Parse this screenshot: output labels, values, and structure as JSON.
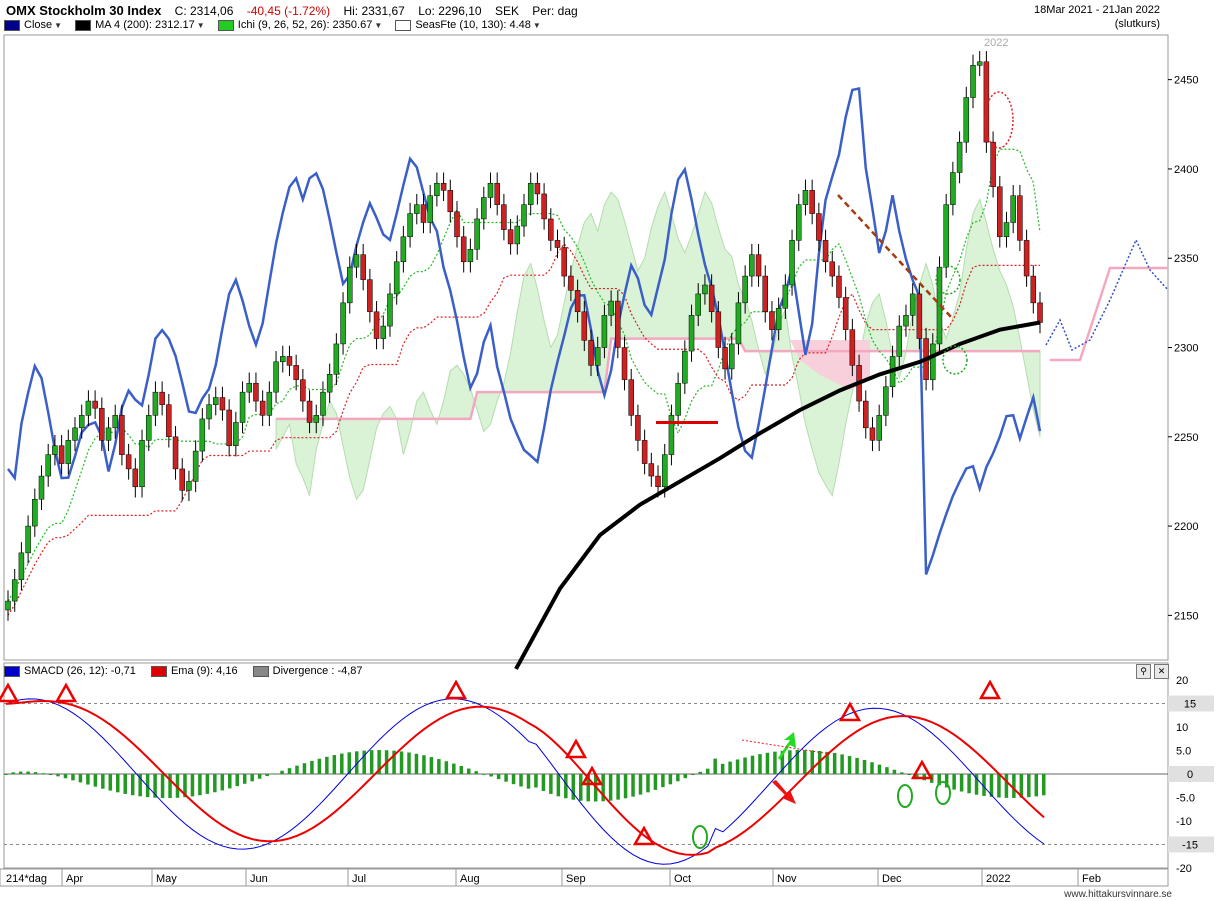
{
  "header": {
    "title": "OMX Stockholm 30 Index",
    "close": "C: 2314,06",
    "change": "-40,45 (-1.72%)",
    "high": "Hi: 2331,67",
    "low": "Lo: 2296,10",
    "currency": "SEK",
    "period": "Per: dag",
    "date_range": "18Mar 2021 - 21Jan 2022",
    "price_type": "(slutkurs)"
  },
  "legend": [
    {
      "label": "Close",
      "color": "#00008b"
    },
    {
      "label": "MA 4 (200): 2312.17",
      "color": "#000000"
    },
    {
      "label": "Ichi (9, 26, 52, 26): 2350.67",
      "color": "#22cc22"
    },
    {
      "label": "SeasFte (10, 130): 4.48",
      "color": "#ffffff"
    }
  ],
  "macd_legend": [
    {
      "label": "SMACD (26, 12): -0,71",
      "color": "#0000cc"
    },
    {
      "label": "Ema (9): 4,16",
      "color": "#dd0000"
    },
    {
      "label": "Divergence : -4,87",
      "color": "#888888"
    }
  ],
  "footer": "www.hittakursvinnare.se",
  "year_label": "2022",
  "period_label": "214*dag",
  "colors": {
    "up": "#22aa22",
    "down": "#cc2222",
    "close_line": "#3a5fc8",
    "ma": "#000000",
    "cloud_bull": "#d4f0d0",
    "cloud_bear": "#f8d0dc",
    "senkou_b": "#f4a8c0",
    "tenkan": "#22bb22",
    "kijun": "#dd2222",
    "macd": "#0000dd",
    "signal": "#ee0000",
    "hist": "#229922"
  },
  "chart_data": [
    {
      "type": "candlestick",
      "title": "OMX Stockholm 30 Index",
      "ylim": [
        2125,
        2475
      ],
      "y_ticks": [
        2150,
        2200,
        2250,
        2300,
        2350,
        2400,
        2450
      ],
      "x_ticks": [
        "Apr",
        "May",
        "Jun",
        "Jul",
        "Aug",
        "Sep",
        "Oct",
        "Nov",
        "Dec",
        "2022",
        "Feb"
      ],
      "closes": [
        2158,
        2170,
        2185,
        2200,
        2215,
        2228,
        2240,
        2245,
        2235,
        2248,
        2255,
        2262,
        2270,
        2266,
        2248,
        2255,
        2262,
        2240,
        2232,
        2222,
        2248,
        2262,
        2275,
        2268,
        2250,
        2232,
        2220,
        2225,
        2242,
        2260,
        2268,
        2272,
        2265,
        2245,
        2258,
        2275,
        2280,
        2270,
        2262,
        2275,
        2292,
        2295,
        2290,
        2282,
        2270,
        2258,
        2262,
        2275,
        2285,
        2302,
        2325,
        2345,
        2352,
        2338,
        2320,
        2305,
        2312,
        2330,
        2348,
        2362,
        2375,
        2380,
        2370,
        2385,
        2392,
        2388,
        2376,
        2362,
        2348,
        2355,
        2372,
        2384,
        2392,
        2380,
        2366,
        2358,
        2368,
        2380,
        2392,
        2386,
        2372,
        2360,
        2356,
        2340,
        2332,
        2320,
        2304,
        2290,
        2300,
        2318,
        2326,
        2300,
        2282,
        2262,
        2248,
        2235,
        2228,
        2222,
        2240,
        2262,
        2280,
        2298,
        2318,
        2330,
        2335,
        2320,
        2300,
        2288,
        2302,
        2325,
        2340,
        2352,
        2340,
        2320,
        2310,
        2322,
        2335,
        2360,
        2380,
        2388,
        2375,
        2360,
        2348,
        2340,
        2328,
        2310,
        2290,
        2270,
        2255,
        2248,
        2262,
        2278,
        2295,
        2312,
        2318,
        2330,
        2305,
        2282,
        2302,
        2345,
        2380,
        2398,
        2415,
        2440,
        2458,
        2460,
        2415,
        2390,
        2362,
        2370,
        2385,
        2360,
        2340,
        2325,
        2314
      ],
      "ma200": [
        [
          516,
          2120
        ],
        [
          560,
          2165
        ],
        [
          600,
          2195
        ],
        [
          640,
          2212
        ],
        [
          680,
          2225
        ],
        [
          720,
          2238
        ],
        [
          760,
          2252
        ],
        [
          800,
          2265
        ],
        [
          840,
          2276
        ],
        [
          880,
          2285
        ],
        [
          920,
          2292
        ],
        [
          960,
          2302
        ],
        [
          1000,
          2310
        ],
        [
          1040,
          2314
        ]
      ],
      "events": [
        {
          "label": "resistance line",
          "value": 2258
        }
      ]
    },
    {
      "type": "macd",
      "ylim": [
        -20,
        20
      ],
      "y_ticks": [
        20,
        10,
        5.0,
        0,
        -5.0,
        -10,
        -15,
        -20
      ],
      "highlight_ticks": [
        15,
        0,
        -15
      ],
      "macd": "-0,71",
      "ema": "4,16",
      "divergence": "-4,87"
    }
  ]
}
